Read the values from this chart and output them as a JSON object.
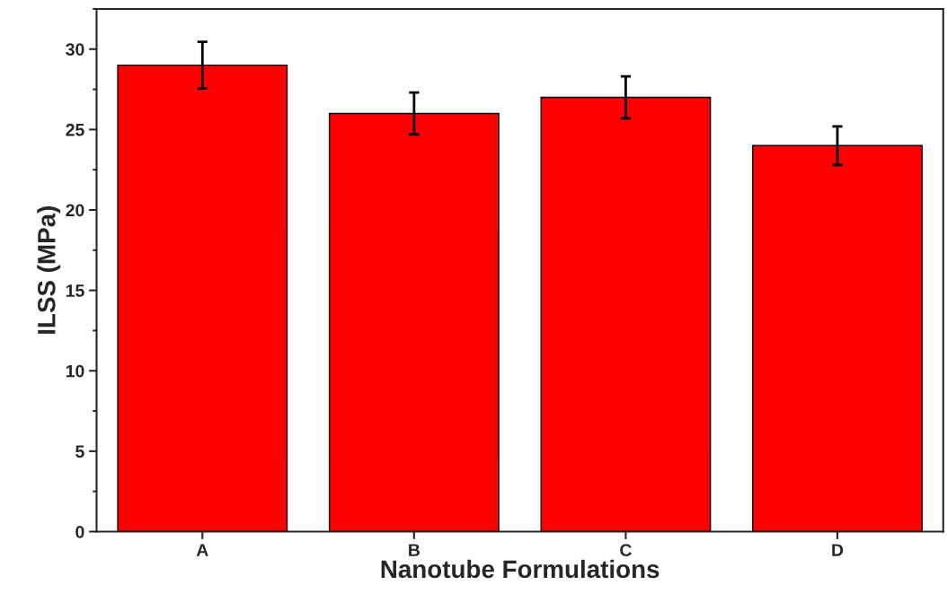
{
  "chart_data": {
    "type": "bar",
    "xlabel": "Nanotube Formulations",
    "ylabel": "ILSS (MPa)",
    "categories": [
      "A",
      "B",
      "C",
      "D"
    ],
    "values": [
      29,
      26,
      27,
      24
    ],
    "errors": [
      1.45,
      1.3,
      1.3,
      1.2
    ],
    "color": "#ff0000",
    "ylim": [
      0,
      32.5
    ],
    "yticks": [
      0,
      5,
      10,
      15,
      20,
      25,
      30
    ],
    "grid": false,
    "legend": false
  }
}
